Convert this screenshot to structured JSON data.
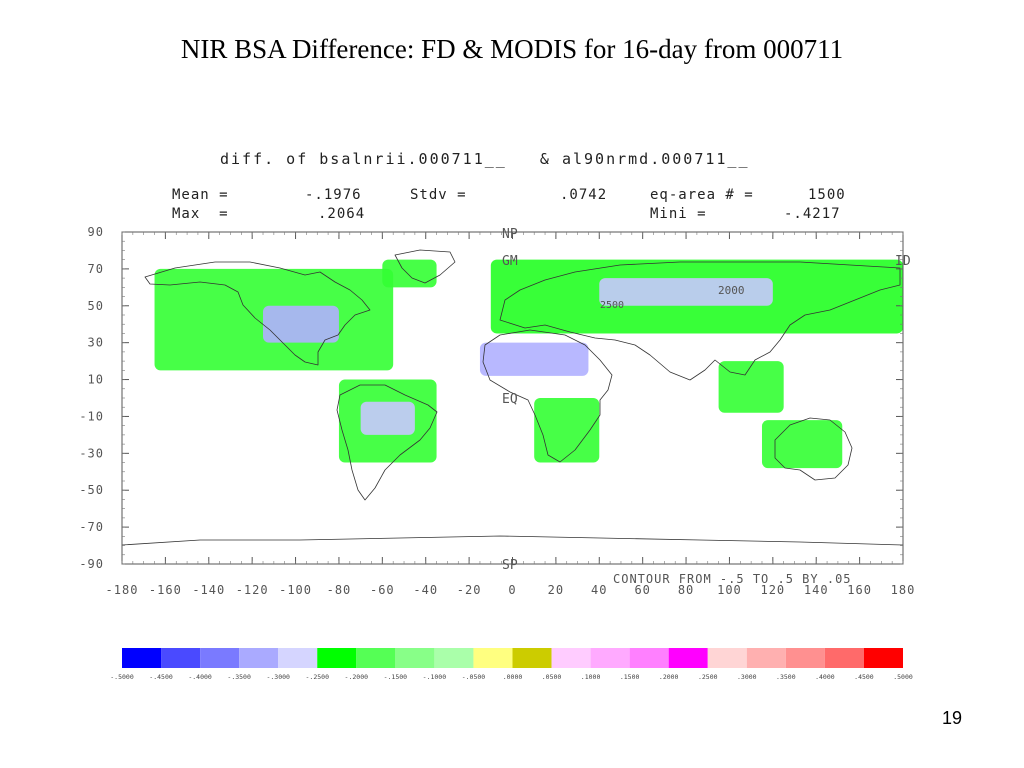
{
  "slide": {
    "title": "NIR BSA Difference: FD & MODIS for 16-day from 000711",
    "page_number": "19"
  },
  "plot": {
    "title": "diff. of bsalnrii.000711__   & al90nrmd.000711__",
    "stats": {
      "mean_label": "Mean =",
      "mean_value": "-.1976",
      "stdv_label": "Stdv =",
      "stdv_value": ".0742",
      "eqarea_label": "eq-area # =",
      "eqarea_value": "1500",
      "max_label": "Max  =",
      "max_value": ".2064",
      "min_label": "Mini =",
      "min_value": "-.4217"
    },
    "annotations": [
      "NP",
      "GM",
      "EQ",
      "SP",
      "ID",
      "2000",
      "2500"
    ],
    "contour_note": "CONTOUR FROM -.5 TO .5 BY .05"
  },
  "chart_data": {
    "type": "heatmap",
    "title": "diff. of bsalnrii.000711__   & al90nrmd.000711__",
    "xlabel": "",
    "ylabel": "",
    "xlim": [
      -180,
      180
    ],
    "ylim": [
      -90,
      90
    ],
    "x_ticks": [
      "-180",
      "-160",
      "-140",
      "-120",
      "-100",
      "-80",
      "-60",
      "-40",
      "-20",
      "0",
      "20",
      "40",
      "60",
      "80",
      "100",
      "120",
      "140",
      "160",
      "180"
    ],
    "y_ticks": [
      "90",
      "70",
      "50",
      "30",
      "10",
      "-10",
      "-30",
      "-50",
      "-70",
      "-90"
    ],
    "colorbar": {
      "labels": [
        "-.5000",
        "-.4500",
        "-.4000",
        "-.3500",
        "-.3000",
        "-.2500",
        "-.2000",
        "-.1500",
        "-.1000",
        "-.0500",
        ".0000",
        ".0500",
        ".1000",
        ".1500",
        ".2000",
        ".2500",
        ".3000",
        ".3500",
        ".4000",
        ".4500",
        ".5000"
      ],
      "colors": [
        "#0000ff",
        "#4a4aff",
        "#7a7aff",
        "#aaaaff",
        "#d5d5ff",
        "#00ff00",
        "#55ff55",
        "#88ff88",
        "#aaffaa",
        "#ffff80",
        "#cccc00",
        "#ffccff",
        "#ffaaff",
        "#ff80ff",
        "#ff00ff",
        "#ffd5d5",
        "#ffb0b0",
        "#ff9090",
        "#ff6a6a",
        "#ff0000"
      ]
    },
    "regions": [
      {
        "name": "North America",
        "lon": [
          -165,
          -55
        ],
        "lat": [
          15,
          70
        ],
        "class": "-.2500 to -.2000",
        "color": "#33ff33"
      },
      {
        "name": "Central US",
        "lon": [
          -115,
          -80
        ],
        "lat": [
          30,
          50
        ],
        "class": "-.3500 to -.3000",
        "color": "#b0b0ff"
      },
      {
        "name": "Greenland coast",
        "lon": [
          -60,
          -35
        ],
        "lat": [
          60,
          75
        ],
        "class": "-.2500 to -.2000",
        "color": "#33ff33"
      },
      {
        "name": "South America",
        "lon": [
          -80,
          -35
        ],
        "lat": [
          -35,
          10
        ],
        "class": "-.2500 to -.2000",
        "color": "#33ff33"
      },
      {
        "name": "Amazon",
        "lon": [
          -70,
          -45
        ],
        "lat": [
          -20,
          -2
        ],
        "class": "-.3000 to -.2500",
        "color": "#c8c8ff"
      },
      {
        "name": "Sahara",
        "lon": [
          -15,
          35
        ],
        "lat": [
          12,
          30
        ],
        "class": "-.3500 to -.3000",
        "color": "#b0b0ff"
      },
      {
        "name": "Southern Africa",
        "lon": [
          10,
          40
        ],
        "lat": [
          -35,
          0
        ],
        "class": "-.2500 to -.2000",
        "color": "#33ff33"
      },
      {
        "name": "Eurasia",
        "lon": [
          -10,
          180
        ],
        "lat": [
          35,
          75
        ],
        "class": "-.2500 to -.2000",
        "color": "#22ff22"
      },
      {
        "name": "Siberia",
        "lon": [
          40,
          120
        ],
        "lat": [
          50,
          65
        ],
        "class": "-.3000 to -.2500",
        "color": "#c8c8ff"
      },
      {
        "name": "Southeast Asia",
        "lon": [
          95,
          125
        ],
        "lat": [
          -8,
          20
        ],
        "class": "-.2500 to -.2000",
        "color": "#33ff33"
      },
      {
        "name": "Australia",
        "lon": [
          115,
          152
        ],
        "lat": [
          -38,
          -12
        ],
        "class": "-.2500 to -.2000",
        "color": "#33ff33"
      }
    ]
  }
}
